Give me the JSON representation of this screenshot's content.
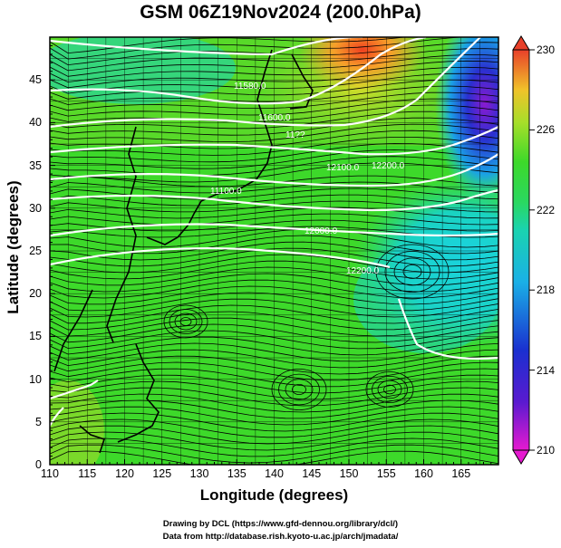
{
  "title": "GSM 06Z19Nov2024 (200.0hPa)",
  "axes": {
    "xlabel": "Longitude (degrees)",
    "ylabel": "Latitude  (degrees)",
    "xticks": [
      "110",
      "115",
      "120",
      "125",
      "130",
      "135",
      "140",
      "145",
      "150",
      "155",
      "160",
      "165"
    ],
    "yticks": [
      "0",
      "5",
      "10",
      "15",
      "20",
      "25",
      "30",
      "35",
      "40",
      "45"
    ]
  },
  "colorbar": {
    "labels": [
      "230",
      "226",
      "222",
      "218",
      "214",
      "210"
    ],
    "colors": [
      "#e8402a",
      "#f7a02a",
      "#3dd92a",
      "#1ad3e6",
      "#1a30d0",
      "#e61ad0"
    ]
  },
  "contour_labels": [
    "11580.0",
    "11600.0",
    "11??",
    "11100.0",
    "12000.0",
    "12100.0",
    "12200.0",
    "12200.0"
  ],
  "credits": [
    "Drawing by DCL (https://www.gfd-dennou.org/library/dcl/)",
    "Data from http://database.rish.kyoto-u.ac.jp/arch/jmadata/"
  ]
}
